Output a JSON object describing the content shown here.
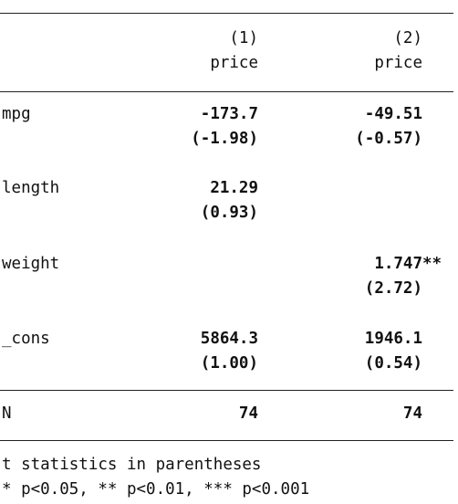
{
  "table": {
    "columns": [
      {
        "number": "(1)",
        "depvar": "price"
      },
      {
        "number": "(2)",
        "depvar": "price"
      }
    ],
    "rows": [
      {
        "label": "mpg",
        "cells": [
          {
            "coef": "-173.7",
            "t": "(-1.98)"
          },
          {
            "coef": "-49.51",
            "t": "(-0.57)"
          }
        ]
      },
      {
        "label": "length",
        "cells": [
          {
            "coef": "21.29",
            "t": "(0.93)"
          },
          null
        ]
      },
      {
        "label": "weight",
        "cells": [
          null,
          {
            "coef": "1.747",
            "stars": "**",
            "t": "(2.72)"
          }
        ]
      },
      {
        "label": "_cons",
        "cells": [
          {
            "coef": "5864.3",
            "t": "(1.00)"
          },
          {
            "coef": "1946.1",
            "t": "(0.54)"
          }
        ]
      }
    ],
    "stats": [
      {
        "label": "N",
        "values": [
          "74",
          "74"
        ]
      }
    ]
  },
  "notes": [
    "t statistics in parentheses",
    "* p<0.05, ** p<0.01, *** p<0.001"
  ]
}
